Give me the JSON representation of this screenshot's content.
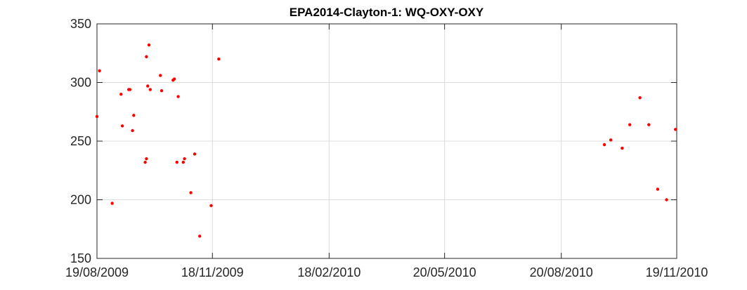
{
  "chart_data": {
    "type": "scatter",
    "title": "EPA2014-Clayton-1: WQ-OXY-OXY",
    "xlabel": "",
    "ylabel": "",
    "x_axis_type": "date",
    "xlim_days": [
      0,
      457
    ],
    "ylim": [
      150,
      350
    ],
    "yticks": [
      150,
      200,
      250,
      300,
      350
    ],
    "xticks": [
      {
        "day": 0,
        "label": "19/08/2009"
      },
      {
        "day": 91,
        "label": "18/11/2009"
      },
      {
        "day": 183,
        "label": "18/02/2010"
      },
      {
        "day": 274,
        "label": "20/05/2010"
      },
      {
        "day": 366,
        "label": "20/08/2010"
      },
      {
        "day": 457,
        "label": "19/11/2010"
      }
    ],
    "grid": true,
    "marker_color": "#ff0000",
    "series": [
      {
        "name": "WQ-OXY-OXY",
        "points": [
          {
            "day": 0,
            "value": 271
          },
          {
            "day": 2,
            "value": 310
          },
          {
            "day": 12,
            "value": 197
          },
          {
            "day": 19,
            "value": 290
          },
          {
            "day": 20,
            "value": 263
          },
          {
            "day": 25,
            "value": 294
          },
          {
            "day": 26,
            "value": 294
          },
          {
            "day": 28,
            "value": 259
          },
          {
            "day": 29,
            "value": 272
          },
          {
            "day": 38,
            "value": 232
          },
          {
            "day": 39,
            "value": 235
          },
          {
            "day": 39,
            "value": 322
          },
          {
            "day": 40,
            "value": 297
          },
          {
            "day": 41,
            "value": 332
          },
          {
            "day": 42,
            "value": 294
          },
          {
            "day": 50,
            "value": 306
          },
          {
            "day": 51,
            "value": 293
          },
          {
            "day": 60,
            "value": 302
          },
          {
            "day": 61,
            "value": 303
          },
          {
            "day": 63,
            "value": 232
          },
          {
            "day": 64,
            "value": 288
          },
          {
            "day": 68,
            "value": 232
          },
          {
            "day": 69,
            "value": 235
          },
          {
            "day": 74,
            "value": 206
          },
          {
            "day": 77,
            "value": 239
          },
          {
            "day": 81,
            "value": 169
          },
          {
            "day": 90,
            "value": 195
          },
          {
            "day": 96,
            "value": 320
          },
          {
            "day": 400,
            "value": 247
          },
          {
            "day": 405,
            "value": 251
          },
          {
            "day": 414,
            "value": 244
          },
          {
            "day": 420,
            "value": 264
          },
          {
            "day": 428,
            "value": 287
          },
          {
            "day": 435,
            "value": 264
          },
          {
            "day": 442,
            "value": 209
          },
          {
            "day": 449,
            "value": 200
          },
          {
            "day": 456,
            "value": 260
          }
        ]
      }
    ]
  }
}
